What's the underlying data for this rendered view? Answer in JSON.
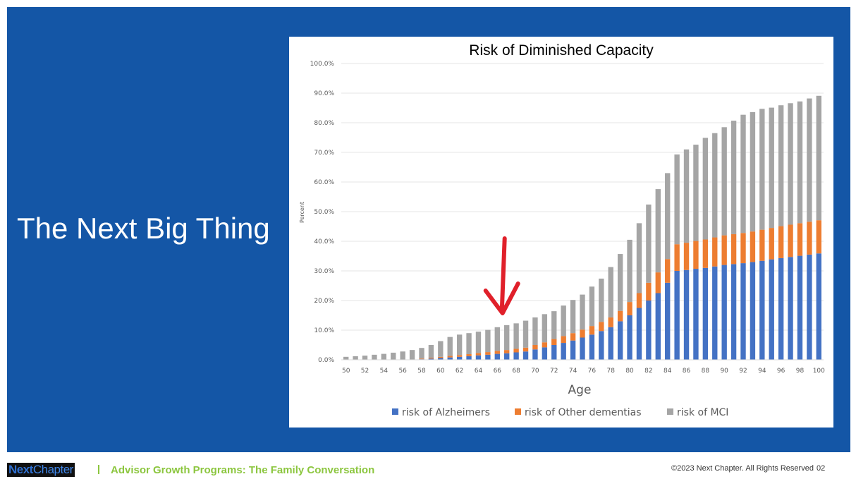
{
  "slide": {
    "heading": "The Next Big Thing",
    "background_color": "#1456a6"
  },
  "footer": {
    "logo_part1": "Next",
    "logo_part2": "Chapter",
    "separator": "I",
    "program": "Advisor Growth Programs: The Family Conversation",
    "copyright": "©2023 Next Chapter. All Rights Reserved",
    "page_number": "02"
  },
  "annotation": {
    "arrow_color": "#e0202a",
    "points_to_age": 67
  },
  "chart_data": {
    "type": "bar",
    "stacked": true,
    "title": "Risk of Diminished Capacity",
    "xlabel": "Age",
    "ylabel": "Percent",
    "ylim": [
      0,
      100
    ],
    "y_ticks": [
      "0.0%",
      "10.0%",
      "20.0%",
      "30.0%",
      "40.0%",
      "50.0%",
      "60.0%",
      "70.0%",
      "80.0%",
      "90.0%",
      "100.0%"
    ],
    "x_tick_labels": [
      "50",
      "52",
      "54",
      "56",
      "58",
      "60",
      "62",
      "64",
      "66",
      "68",
      "70",
      "72",
      "74",
      "76",
      "78",
      "80",
      "82",
      "84",
      "86",
      "88",
      "90",
      "92",
      "94",
      "96",
      "98",
      "100"
    ],
    "grid": true,
    "legend_position": "bottom",
    "categories": [
      50,
      51,
      52,
      53,
      54,
      55,
      56,
      57,
      58,
      59,
      60,
      61,
      62,
      63,
      64,
      65,
      66,
      67,
      68,
      69,
      70,
      71,
      72,
      73,
      74,
      75,
      76,
      77,
      78,
      79,
      80,
      81,
      82,
      83,
      84,
      85,
      86,
      87,
      88,
      89,
      90,
      91,
      92,
      93,
      94,
      95,
      96,
      97,
      98,
      99,
      100
    ],
    "series": [
      {
        "name": "risk of Alzheimers",
        "color": "#4472c4",
        "values": [
          0,
          0,
          0,
          0,
          0,
          0,
          0,
          0.1,
          0.2,
          0.4,
          0.6,
          0.8,
          1.0,
          1.2,
          1.5,
          1.7,
          2.0,
          2.2,
          2.5,
          2.8,
          3.5,
          4.2,
          5.0,
          5.7,
          6.5,
          7.5,
          8.5,
          9.7,
          11.0,
          13.0,
          15.0,
          17.5,
          20.0,
          22.5,
          26.0,
          30.0,
          30.3,
          30.7,
          31.0,
          31.5,
          32.0,
          32.3,
          32.6,
          33.0,
          33.4,
          33.9,
          34.3,
          34.7,
          35.1,
          35.5,
          35.9
        ]
      },
      {
        "name": "risk of Other dementias",
        "color": "#ed7d31",
        "values": [
          0,
          0,
          0,
          0,
          0,
          0,
          0,
          0,
          0.2,
          0.3,
          0.4,
          0.5,
          0.6,
          0.7,
          0.8,
          0.9,
          1.0,
          1.1,
          1.2,
          1.3,
          1.5,
          1.7,
          2.0,
          2.3,
          2.5,
          2.7,
          2.9,
          3.1,
          3.3,
          3.5,
          4.5,
          5.0,
          6.0,
          7.0,
          8.0,
          9.0,
          9.2,
          9.4,
          9.6,
          9.8,
          10.0,
          10.1,
          10.2,
          10.3,
          10.5,
          10.6,
          10.8,
          10.9,
          11.0,
          11.1,
          11.2
        ]
      },
      {
        "name": "risk of MCI",
        "color": "#a5a5a5",
        "values": [
          1.0,
          1.2,
          1.4,
          1.7,
          2.0,
          2.4,
          2.8,
          3.2,
          3.6,
          4.3,
          5.3,
          6.4,
          6.9,
          7.1,
          7.2,
          7.5,
          8.0,
          8.4,
          8.6,
          9.1,
          9.3,
          9.5,
          9.4,
          10.3,
          11.2,
          11.8,
          13.3,
          14.6,
          17.0,
          19.2,
          21.0,
          23.6,
          26.4,
          28.1,
          29.0,
          30.3,
          31.5,
          32.5,
          34.3,
          35.2,
          36.5,
          38.3,
          39.9,
          40.3,
          40.8,
          40.6,
          40.8,
          41.0,
          41.1,
          41.6,
          42.0
        ]
      }
    ]
  }
}
